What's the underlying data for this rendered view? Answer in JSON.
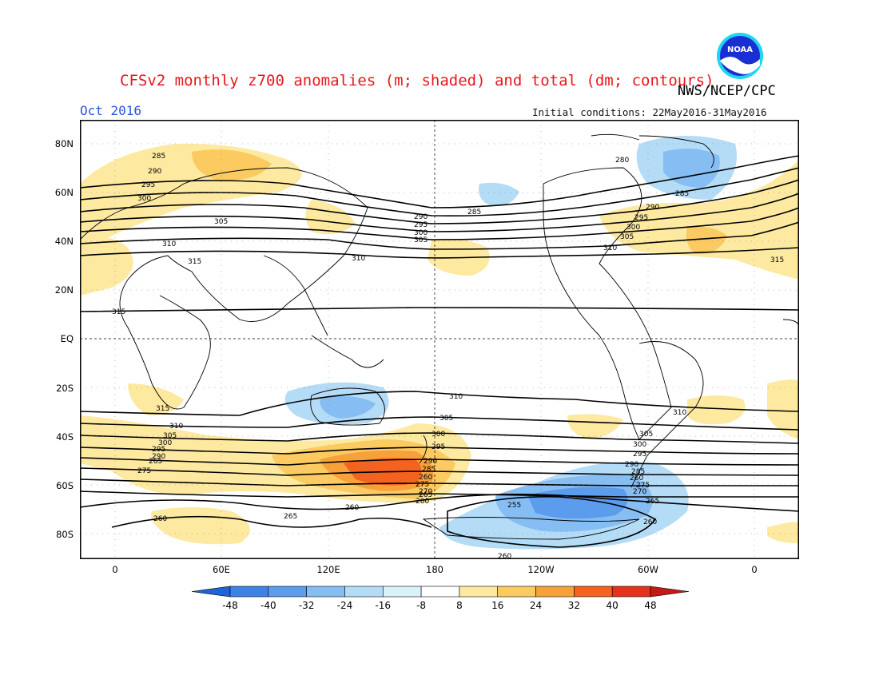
{
  "header": {
    "title": "CFSv2 monthly z700 anomalies (m; shaded) and total (dm; contours)",
    "org": "NWS/NCEP/CPC",
    "month": "Oct 2016",
    "initial_conditions": "Initial conditions: 22May2016-31May2016",
    "logo_text": "NOAA"
  },
  "axes": {
    "lat_labels": [
      "80N",
      "60N",
      "40N",
      "20N",
      "EQ",
      "20S",
      "40S",
      "60S",
      "80S"
    ],
    "lon_labels": [
      "0",
      "60E",
      "120E",
      "180",
      "120W",
      "60W",
      "0"
    ]
  },
  "colorbar": {
    "ticks": [
      "-48",
      "-40",
      "-32",
      "-24",
      "-16",
      "-8",
      "8",
      "16",
      "24",
      "32",
      "40",
      "48"
    ],
    "colors": [
      "#1e64d8",
      "#3d83e6",
      "#5b9cec",
      "#86bdf2",
      "#b4dcf7",
      "#d9f2f9",
      "#ffffff",
      "#fde9a0",
      "#fbca60",
      "#f7a13a",
      "#f3621e",
      "#e5321a",
      "#c21a16"
    ]
  },
  "contour_labels": [
    "285",
    "290",
    "295",
    "300",
    "305",
    "310",
    "315",
    "280",
    "265",
    "260",
    "275",
    "270",
    "255"
  ],
  "legend": {
    "anomaly_units": "m",
    "contour_units": "dm"
  }
}
